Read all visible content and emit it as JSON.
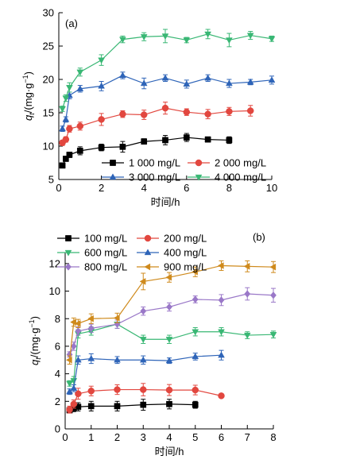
{
  "chart_data": [
    {
      "type": "line",
      "panel_label": "(a)",
      "xlabel": "时间/h",
      "ylabel_html": "q_t/(mg·g^-1)",
      "ylabel_main": "q",
      "ylabel_sub": "t",
      "ylabel_rest": "/(mg·g",
      "ylabel_sup": "−1",
      "ylabel_end": ")",
      "xlim": [
        0,
        10
      ],
      "ylim": [
        5,
        30
      ],
      "xticks": [
        0,
        2,
        4,
        6,
        8,
        10
      ],
      "yticks": [
        5,
        10,
        15,
        20,
        25,
        30
      ],
      "legend_position": "bottom-right",
      "series": [
        {
          "name": "1 000 mg/L",
          "color": "#000000",
          "marker": "square",
          "x": [
            0.17,
            0.33,
            0.5,
            1,
            2,
            3,
            4,
            5,
            6,
            7,
            8
          ],
          "y": [
            7.1,
            8.1,
            8.7,
            9.3,
            9.8,
            9.9,
            10.7,
            10.9,
            11.3,
            11.0,
            10.9
          ],
          "err": [
            0.3,
            0.3,
            0.4,
            0.6,
            0.5,
            0.8,
            0.4,
            0.7,
            0.6,
            0.3,
            0.5
          ]
        },
        {
          "name": "2 000 mg/L",
          "color": "#e2473f",
          "marker": "circle",
          "x": [
            0.17,
            0.33,
            0.5,
            1,
            2,
            3,
            4,
            5,
            6,
            7,
            8,
            9
          ],
          "y": [
            10.5,
            11.0,
            12.6,
            13.0,
            14.0,
            14.8,
            14.7,
            15.7,
            15.1,
            14.8,
            15.2,
            15.3
          ],
          "err": [
            0.4,
            0.4,
            0.5,
            0.6,
            0.9,
            0.5,
            0.7,
            0.9,
            0.5,
            0.7,
            0.6,
            0.8
          ]
        },
        {
          "name": "3 000 mg/L",
          "color": "#2e64b8",
          "marker": "triangle-up",
          "x": [
            0.17,
            0.33,
            0.5,
            1,
            2,
            3,
            4,
            5,
            6,
            7,
            8,
            9,
            10
          ],
          "y": [
            12.6,
            14.0,
            17.6,
            18.6,
            19.0,
            20.6,
            19.4,
            20.2,
            19.3,
            20.2,
            19.4,
            19.6,
            19.9
          ],
          "err": [
            0.4,
            0.4,
            0.5,
            0.5,
            0.7,
            0.5,
            0.8,
            0.5,
            0.6,
            0.5,
            0.6,
            0.4,
            0.6
          ]
        },
        {
          "name": "4 000 mg/L",
          "color": "#39b774",
          "marker": "triangle-down",
          "x": [
            0.17,
            0.33,
            0.5,
            1,
            2,
            3,
            4,
            5,
            6,
            7,
            8,
            9,
            10
          ],
          "y": [
            15.6,
            17.2,
            18.8,
            21.1,
            22.9,
            26.0,
            26.4,
            26.5,
            25.9,
            26.8,
            25.9,
            26.6,
            26.1
          ],
          "err": [
            0.4,
            0.5,
            0.7,
            0.6,
            0.8,
            0.5,
            0.6,
            1.0,
            0.4,
            0.7,
            1.0,
            0.6,
            0.4
          ]
        }
      ]
    },
    {
      "type": "line",
      "panel_label": "(b)",
      "xlabel": "时间/h",
      "ylabel_main": "q",
      "ylabel_sub": "t",
      "ylabel_rest": "/(mg·g",
      "ylabel_sup": "−1",
      "ylabel_end": ")",
      "xlim": [
        0,
        8
      ],
      "ylim": [
        0,
        12.8
      ],
      "xticks": [
        0,
        1,
        2,
        3,
        4,
        5,
        6,
        7,
        8
      ],
      "yticks": [
        0,
        2,
        4,
        6,
        8,
        10,
        12
      ],
      "legend_position": "top-left",
      "series": [
        {
          "name": "100 mg/L",
          "color": "#000000",
          "marker": "square",
          "x": [
            0.17,
            0.33,
            0.5,
            1,
            2,
            3,
            4,
            5
          ],
          "y": [
            1.35,
            1.5,
            1.6,
            1.65,
            1.65,
            1.75,
            1.8,
            1.75
          ],
          "err": [
            0.2,
            0.25,
            0.3,
            0.35,
            0.35,
            0.4,
            0.35,
            0.25
          ]
        },
        {
          "name": "200 mg/L",
          "color": "#e2473f",
          "marker": "circle",
          "x": [
            0.17,
            0.33,
            0.5,
            1,
            2,
            3,
            4,
            5,
            6
          ],
          "y": [
            1.4,
            1.8,
            2.55,
            2.75,
            2.85,
            2.85,
            2.82,
            2.82,
            2.4
          ],
          "err": [
            0.25,
            0.3,
            0.4,
            0.35,
            0.35,
            0.45,
            0.4,
            0.35,
            0.15
          ]
        },
        {
          "name": "600 mg/L",
          "color": "#39b774",
          "marker": "triangle-down",
          "x": [
            0.17,
            0.33,
            0.5,
            1,
            2,
            3,
            4,
            5,
            6,
            7,
            8
          ],
          "y": [
            3.3,
            3.5,
            6.9,
            7.1,
            7.6,
            6.5,
            6.5,
            7.05,
            7.05,
            6.8,
            6.85
          ],
          "err": [
            0.2,
            0.3,
            0.3,
            0.3,
            0.3,
            0.3,
            0.3,
            0.3,
            0.3,
            0.25,
            0.25
          ]
        },
        {
          "name": "400 mg/L",
          "color": "#2e64b8",
          "marker": "triangle-up",
          "x": [
            0.17,
            0.33,
            0.5,
            1,
            2,
            3,
            4,
            5,
            6
          ],
          "y": [
            2.7,
            2.95,
            5.0,
            5.1,
            5.0,
            5.0,
            4.95,
            5.25,
            5.35
          ],
          "err": [
            0.2,
            0.25,
            0.3,
            0.35,
            0.25,
            0.3,
            0.2,
            0.25,
            0.35
          ]
        },
        {
          "name": "800 mg/L",
          "color": "#9a78c8",
          "marker": "diamond",
          "x": [
            0.17,
            0.33,
            0.5,
            1,
            2,
            3,
            4,
            5,
            6,
            7,
            8
          ],
          "y": [
            5.4,
            6.0,
            7.1,
            7.3,
            7.6,
            8.55,
            8.85,
            9.4,
            9.35,
            9.8,
            9.7
          ],
          "err": [
            0.2,
            0.3,
            0.3,
            0.3,
            0.3,
            0.3,
            0.3,
            0.25,
            0.4,
            0.45,
            0.5
          ]
        },
        {
          "name": "900 mg/L",
          "color": "#cf8a1c",
          "marker": "triangle-left",
          "x": [
            0.17,
            0.33,
            0.5,
            1,
            2,
            3,
            4,
            5,
            6,
            7,
            8
          ],
          "y": [
            5.0,
            7.75,
            7.65,
            8.0,
            8.05,
            10.7,
            11.0,
            11.4,
            11.85,
            11.8,
            11.75
          ],
          "err": [
            0.3,
            0.3,
            0.3,
            0.35,
            0.35,
            0.6,
            0.35,
            0.35,
            0.35,
            0.4,
            0.4
          ]
        }
      ]
    }
  ]
}
